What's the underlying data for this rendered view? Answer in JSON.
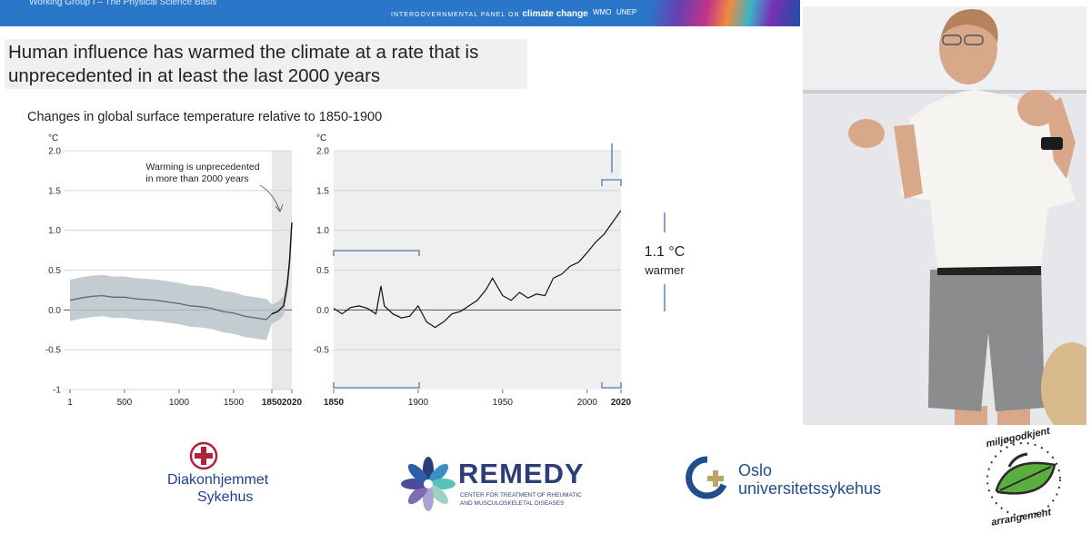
{
  "slide": {
    "working_group": "Working Group I – The Physical Science Basis",
    "ipcc_prefix": "INTERGOVERNMENTAL PANEL ON",
    "ipcc_emph": "climate change",
    "org1": "WMO",
    "org2": "UNEP",
    "headline_line1": "Human influence has warmed the climate at a rate that is",
    "headline_line2": "unprecedented in at least the last 2000 years",
    "subtitle": "Changes in global surface temperature relative to 1850-1900",
    "annotation_line1": "Warming is unprecedented",
    "annotation_line2": "in more than 2000 years",
    "callout_value": "1.1 °C",
    "callout_label": "warmer"
  },
  "chart_data": [
    {
      "type": "area",
      "ylabel": "°C",
      "xlim": [
        1,
        2020
      ],
      "ylim": [
        -1,
        2
      ],
      "x_ticks": [
        "1",
        "500",
        "1000",
        "1500",
        "1850",
        "2020"
      ],
      "y_ticks": [
        "2.0",
        "1.5",
        "1.0",
        "0.5",
        "0.0",
        "-0.5",
        "-1"
      ],
      "grid": true,
      "highlight_range": [
        1850,
        2020
      ],
      "series": [
        {
          "x": [
            1,
            100,
            200,
            300,
            400,
            500,
            600,
            700,
            800,
            900,
            1000,
            1100,
            1200,
            1300,
            1400,
            1500,
            1600,
            1700,
            1800,
            1850,
            1900,
            1950,
            1980,
            2000,
            2020
          ],
          "values": [
            0.12,
            0.15,
            0.17,
            0.18,
            0.16,
            0.16,
            0.14,
            0.13,
            0.12,
            0.1,
            0.08,
            0.05,
            0.04,
            0.02,
            -0.02,
            -0.04,
            -0.08,
            -0.1,
            -0.12,
            -0.05,
            -0.02,
            0.05,
            0.3,
            0.6,
            1.1
          ]
        }
      ]
    },
    {
      "type": "line",
      "ylabel": "°C",
      "xlim": [
        1850,
        2020
      ],
      "ylim": [
        -1,
        2
      ],
      "x_ticks": [
        "1850",
        "1900",
        "1950",
        "2000",
        "2020"
      ],
      "y_ticks": [
        "2.0",
        "1.5",
        "1.0",
        "0.5",
        "0.0",
        "-0.5"
      ],
      "grid": true,
      "series": [
        {
          "x": [
            1850,
            1855,
            1860,
            1865,
            1870,
            1875,
            1878,
            1880,
            1885,
            1890,
            1895,
            1900,
            1905,
            1910,
            1915,
            1920,
            1925,
            1930,
            1935,
            1940,
            1944,
            1950,
            1955,
            1960,
            1965,
            1970,
            1975,
            1980,
            1985,
            1990,
            1995,
            2000,
            2005,
            2010,
            2015,
            2020
          ],
          "values": [
            0.02,
            -0.05,
            0.03,
            0.05,
            0.02,
            -0.05,
            0.3,
            0.05,
            -0.05,
            -0.1,
            -0.08,
            0.05,
            -0.15,
            -0.22,
            -0.15,
            -0.05,
            -0.02,
            0.05,
            0.12,
            0.25,
            0.4,
            0.18,
            0.12,
            0.22,
            0.15,
            0.2,
            0.18,
            0.4,
            0.45,
            0.55,
            0.6,
            0.72,
            0.85,
            0.95,
            1.1,
            1.25
          ]
        }
      ]
    }
  ],
  "logos": {
    "diakon_line1": "Diakonhjemmet",
    "diakon_line2": "Sykehus",
    "remedy_name": "REMEDY",
    "remedy_sub1": "CENTER FOR TREATMENT OF RHEUMATIC",
    "remedy_sub2": "AND MUSCULOSKELETAL DISEASES",
    "oslo_line1": "Oslo",
    "oslo_line2": "universitetssykehus",
    "eco_top": "miljøgodkjent",
    "eco_bottom": "arrangement"
  },
  "colors": {
    "header_blue": "#2a77c9",
    "band_gray": "#b9c3c9",
    "series_line": "#4e6e78",
    "bracket_blue": "#6b8fb5",
    "remedy_navy": "#2c3e7a",
    "oslo_blue": "#1f4e8c"
  }
}
